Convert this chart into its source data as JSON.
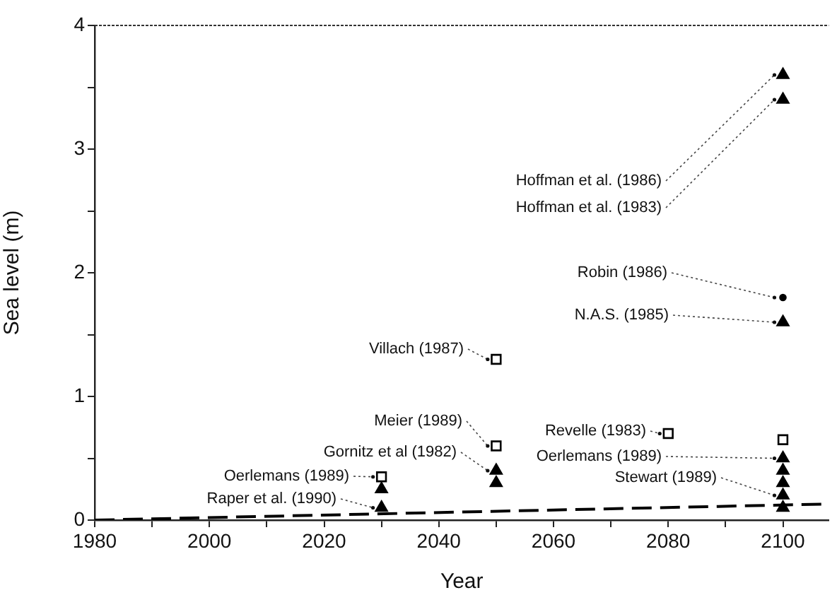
{
  "chart_data": {
    "type": "scatter",
    "xlabel": "Year",
    "ylabel": "Sea level (m)",
    "xlim": [
      1980,
      2108
    ],
    "ylim": [
      0,
      4
    ],
    "xticks": [
      1980,
      {
        "value": 1990,
        "label": null
      },
      2000,
      {
        "value": 2010,
        "label": null
      },
      2020,
      {
        "value": 2030,
        "label": null
      },
      2040,
      {
        "value": 2050,
        "label": null
      },
      2060,
      {
        "value": 2070,
        "label": null
      },
      2080,
      {
        "value": 2090,
        "label": null
      },
      2100
    ],
    "yticks": [
      0,
      {
        "value": 0.5,
        "label": null
      },
      1,
      {
        "value": 1.5,
        "label": null
      },
      2,
      {
        "value": 2.5,
        "label": null
      },
      3,
      {
        "value": 3.5,
        "label": null
      },
      4
    ],
    "grid": false,
    "legend": false,
    "series": [
      {
        "type": "scatter",
        "marker": "square",
        "color": "#000000",
        "x": [
          2030,
          2050,
          2050,
          2080,
          2100
        ],
        "values": [
          0.35,
          1.3,
          0.6,
          0.7,
          0.65
        ]
      },
      {
        "type": "scatter",
        "marker": "triangle",
        "color": "#000000",
        "x": [
          2030,
          2030,
          2050,
          2050,
          2100,
          2100,
          2100,
          2100,
          2100,
          2100,
          2100,
          2100
        ],
        "values": [
          0.25,
          0.1,
          0.4,
          0.3,
          3.6,
          3.4,
          1.6,
          0.5,
          0.4,
          0.3,
          0.2,
          0.1
        ]
      },
      {
        "type": "scatter",
        "marker": "circle",
        "color": "#000000",
        "x": [
          2100
        ],
        "values": [
          1.8
        ]
      },
      {
        "type": "line",
        "marker": "none",
        "line_style": "dashed",
        "color": "#000000",
        "x": [
          1980,
          2108
        ],
        "values": [
          0,
          0.13
        ]
      }
    ],
    "annotations": [
      {
        "text": "Hoffman et al. (1986)",
        "x": 2100,
        "y": 3.6
      },
      {
        "text": "Hoffman et al. (1983)",
        "x": 2100,
        "y": 3.4
      },
      {
        "text": "Robin (1986)",
        "x": 2100,
        "y": 1.8
      },
      {
        "text": "N.A.S. (1985)",
        "x": 2100,
        "y": 1.6
      },
      {
        "text": "Villach (1987)",
        "x": 2050,
        "y": 1.3
      },
      {
        "text": "Meier (1989)",
        "x": 2050,
        "y": 0.6
      },
      {
        "text": "Gornitz et al (1982)",
        "x": 2050,
        "y": 0.4
      },
      {
        "text": "Oerlemans (1989)",
        "x": 2030,
        "y": 0.35
      },
      {
        "text": "Raper et al. (1990)",
        "x": 2030,
        "y": 0.1
      },
      {
        "text": "Revelle (1983)",
        "x": 2080,
        "y": 0.7
      },
      {
        "text": "Oerlemans (1989)",
        "x": 2100,
        "y": 0.5
      },
      {
        "text": "Stewart (1989)",
        "x": 2100,
        "y": 0.2
      }
    ]
  }
}
